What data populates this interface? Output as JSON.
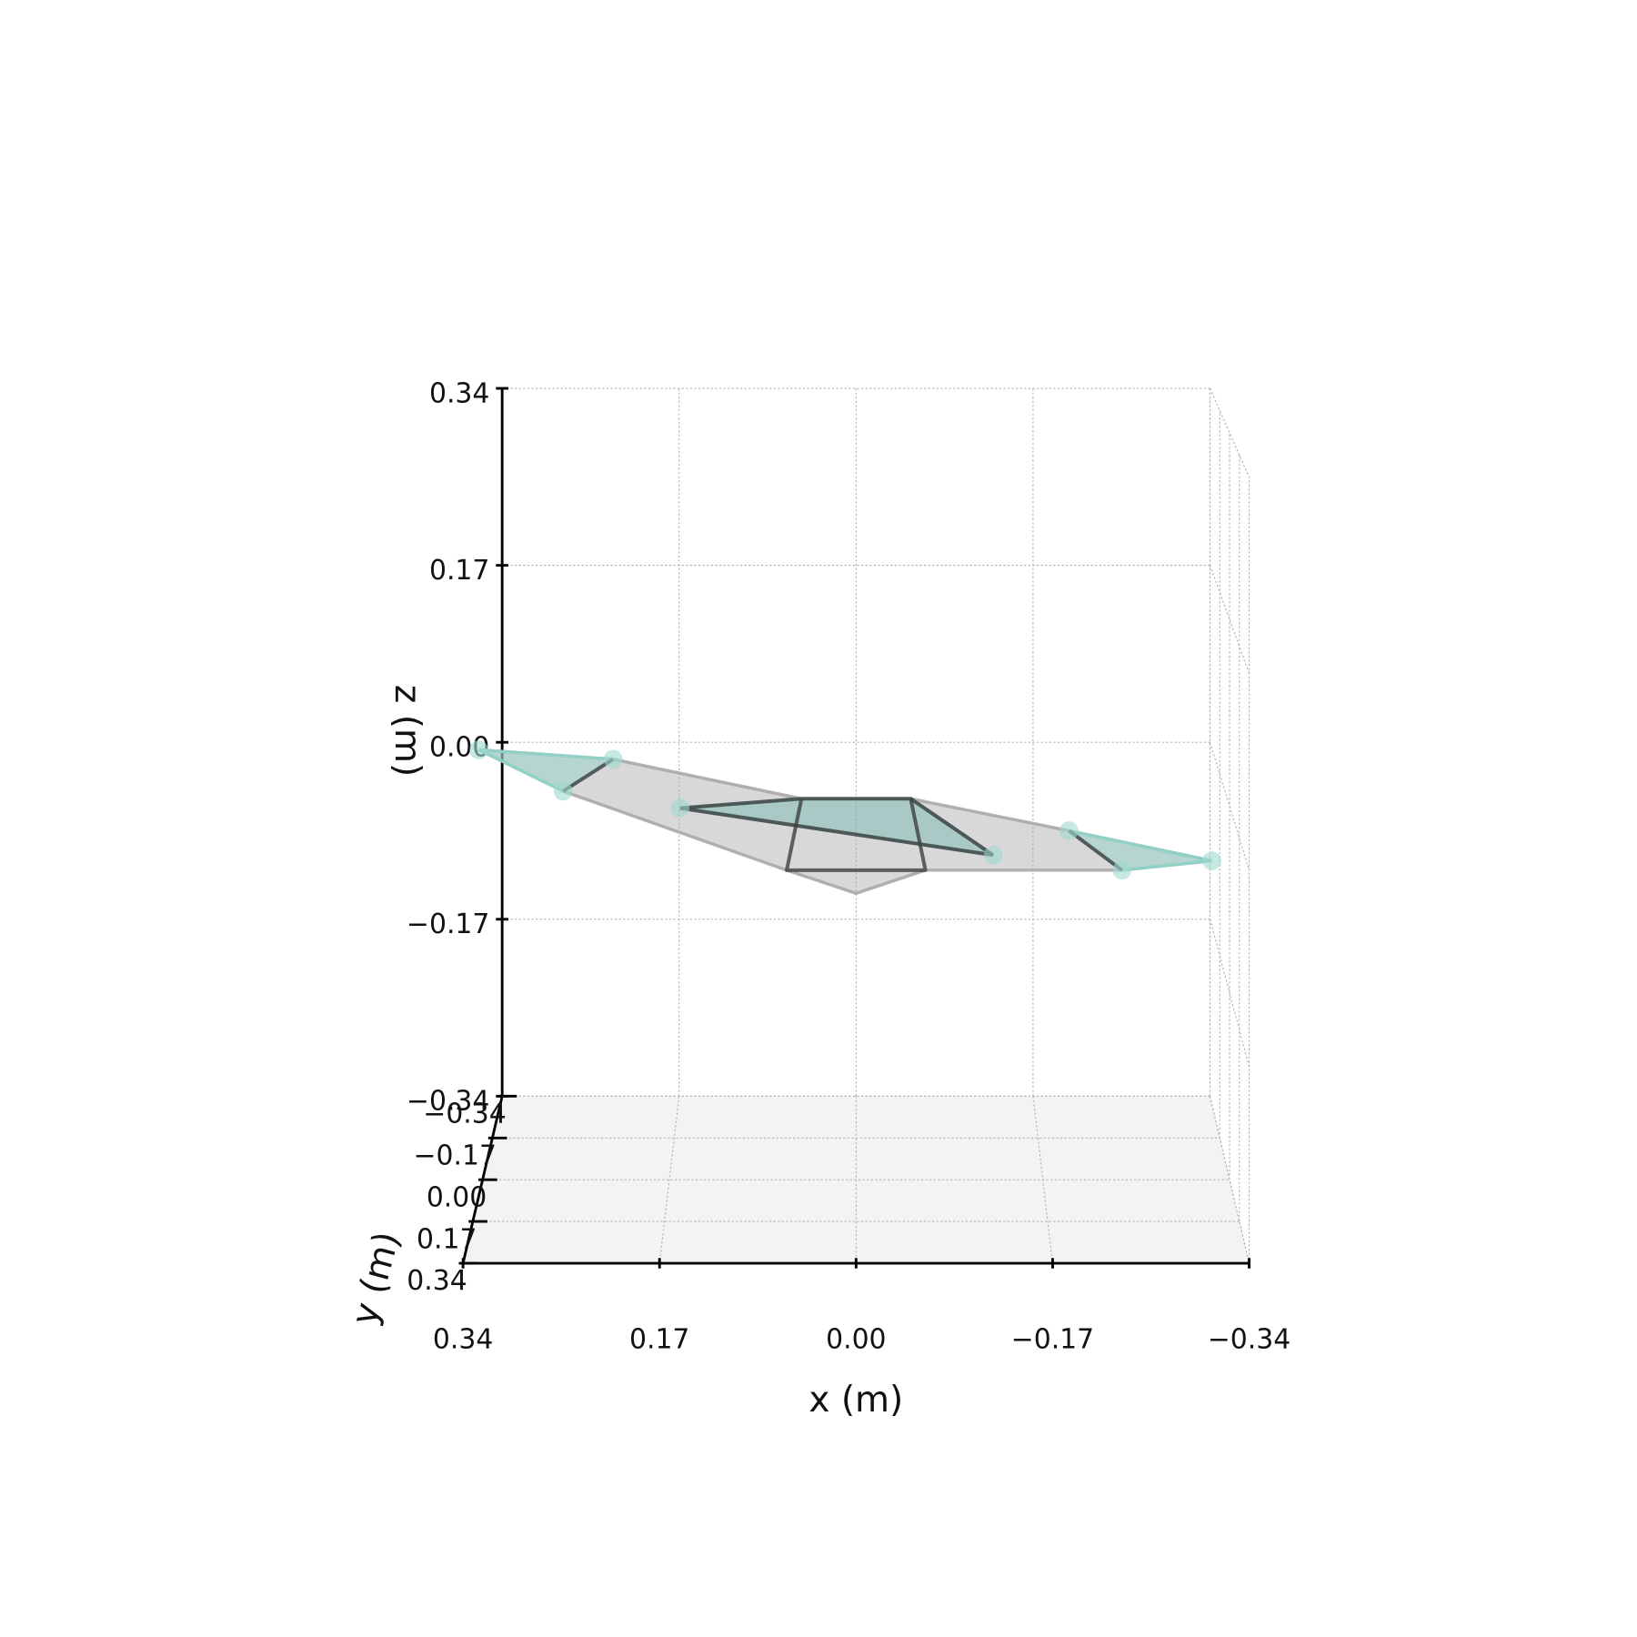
{
  "chart_data": {
    "type": "mesh3d",
    "xlabel": "x (m)",
    "ylabel": "y (m)",
    "zlabel": "z (m)",
    "xlim": [
      0.34,
      -0.34
    ],
    "ylim": [
      -0.34,
      0.34
    ],
    "zlim": [
      -0.34,
      0.34
    ],
    "xticks": [
      0.34,
      0.17,
      {
        "value": 0,
        "label": "0.00"
      },
      {
        "value": -0.17,
        "label": "−0.17"
      },
      {
        "value": -0.34,
        "label": "−0.34"
      }
    ],
    "yticks": [
      {
        "value": -0.34,
        "label": "−0.34"
      },
      {
        "value": -0.17,
        "label": "−0.17"
      },
      {
        "value": 0,
        "label": "0.00"
      },
      0.17,
      0.34
    ],
    "zticks": [
      {
        "value": -0.34,
        "label": "−0.34"
      },
      {
        "value": -0.17,
        "label": "−0.17"
      },
      {
        "value": 0,
        "label": "0.00"
      },
      0.17,
      0.34
    ],
    "grid": true,
    "polygons": [
      {
        "color": "#a8a8a8",
        "x": [
          0.36,
          0.23,
          0.05,
          -0.05,
          -0.19,
          -0.31,
          -0.23,
          -0.06,
          0,
          0.06,
          0.27
        ],
        "y": [
          -0.3,
          -0.25,
          -0.04,
          -0.04,
          0.13,
          0.29,
          0.34,
          0.34,
          0.34,
          0.34,
          -0.08
        ],
        "z": [
          0,
          0,
          0,
          0,
          0,
          0,
          0,
          0,
          -0.02,
          0,
          0
        ]
      },
      {
        "color": "#8fd3c9",
        "x": [
          0.36,
          0.23,
          0.27
        ],
        "y": [
          -0.3,
          -0.25,
          -0.08
        ],
        "z": [
          0,
          0,
          0
        ]
      },
      {
        "color": "#8fd3c9",
        "x": [
          -0.19,
          -0.31,
          -0.23
        ],
        "y": [
          0.13,
          0.29,
          0.34
        ],
        "z": [
          0,
          0,
          0
        ]
      },
      {
        "color": "#6fb8b0",
        "x": [
          0.16,
          0.05,
          -0.05,
          -0.12
        ],
        "y": [
          0.01,
          -0.04,
          -0.04,
          0.26
        ],
        "z": [
          0,
          0,
          0,
          0
        ]
      }
    ],
    "lines": [
      {
        "color": "#404040",
        "x": [
          0.05,
          -0.05,
          -0.06,
          0.06,
          0.05
        ],
        "y": [
          -0.04,
          -0.04,
          0.34,
          0.34,
          -0.04
        ],
        "z": [
          0,
          0,
          0,
          0,
          0
        ]
      },
      {
        "color": "#404040",
        "x": [
          0.16,
          0.05
        ],
        "y": [
          0.01,
          -0.04
        ],
        "z": [
          0,
          0
        ]
      },
      {
        "color": "#404040",
        "x": [
          0.16,
          -0.12
        ],
        "y": [
          0.01,
          0.26
        ],
        "z": [
          0,
          0
        ]
      },
      {
        "color": "#404040",
        "x": [
          -0.05,
          -0.12
        ],
        "y": [
          -0.04,
          0.26
        ],
        "z": [
          0,
          0
        ]
      },
      {
        "color": "#404040",
        "x": [
          0.23,
          0.27
        ],
        "y": [
          -0.25,
          -0.08
        ],
        "z": [
          0,
          0
        ]
      },
      {
        "color": "#404040",
        "x": [
          -0.19,
          -0.23
        ],
        "y": [
          0.13,
          0.34
        ],
        "z": [
          0,
          0
        ]
      }
    ],
    "points": {
      "color": "#9fd9cf",
      "x": [
        0.36,
        0.23,
        0.27,
        0.16,
        -0.12,
        -0.19,
        -0.23,
        -0.31
      ],
      "y": [
        -0.3,
        -0.25,
        -0.08,
        0.01,
        0.26,
        0.13,
        0.34,
        0.29
      ],
      "z": [
        0,
        0,
        0,
        0,
        0,
        0,
        0,
        0
      ]
    }
  }
}
